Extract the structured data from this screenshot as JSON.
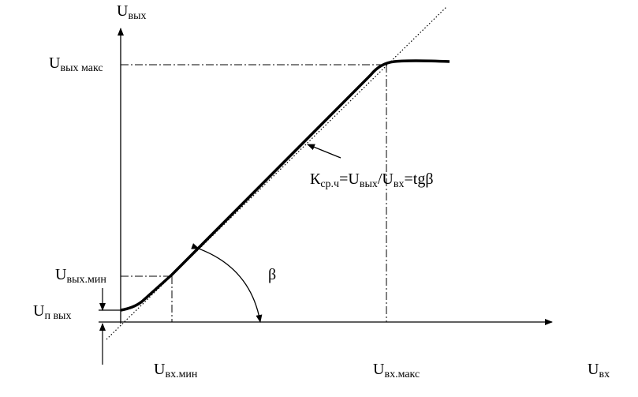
{
  "labels": [
    {
      "id": "y-axis-title",
      "parts": [
        {
          "text": "U"
        },
        {
          "sub": "вых"
        }
      ]
    },
    {
      "id": "u-out-max",
      "parts": [
        {
          "text": "U"
        },
        {
          "sub": "вых  макс"
        }
      ]
    },
    {
      "id": "u-out-min",
      "parts": [
        {
          "text": "U"
        },
        {
          "sub": "вых.мин"
        }
      ]
    },
    {
      "id": "u-n-out",
      "parts": [
        {
          "text": "U"
        },
        {
          "sub": "п вых"
        }
      ]
    },
    {
      "id": "u-in-min",
      "parts": [
        {
          "text": "U"
        },
        {
          "sub": "вх.мин"
        }
      ]
    },
    {
      "id": "u-in-max",
      "parts": [
        {
          "text": "U"
        },
        {
          "sub": "вх.макс"
        }
      ]
    },
    {
      "id": "x-axis-title",
      "parts": [
        {
          "text": "U"
        },
        {
          "sub": "вх"
        }
      ]
    },
    {
      "id": "gain-formula",
      "parts": [
        {
          "text": "К"
        },
        {
          "sub": "ср.ч"
        },
        {
          "text": "=U"
        },
        {
          "sub": "вых"
        },
        {
          "text": "/U"
        },
        {
          "sub": "вх"
        },
        {
          "text": "=tgβ"
        }
      ]
    },
    {
      "id": "angle-beta",
      "parts": [
        {
          "text": "β"
        }
      ]
    }
  ]
}
